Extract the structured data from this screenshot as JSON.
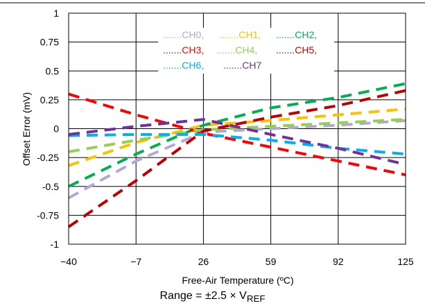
{
  "chart_data": {
    "type": "line",
    "xlabel": "Free-Air Temperature (ºC)",
    "ylabel": "Offset Error (mV)",
    "xlim": [
      -40,
      125
    ],
    "ylim": [
      -1,
      1
    ],
    "x_ticks": [
      -40,
      -7,
      26,
      59,
      92,
      125
    ],
    "x_tick_labels": [
      "−40",
      "−7",
      "26",
      "59",
      "92",
      "125"
    ],
    "y_ticks": [
      1,
      0.75,
      0.5,
      0.25,
      0,
      -0.25,
      -0.5,
      -0.75,
      -1
    ],
    "y_tick_labels": [
      "1",
      "0.75",
      "0.5",
      "0.25",
      "0",
      "-0.25",
      "-0.5",
      "-0.75",
      "-1"
    ],
    "grid": true,
    "legend_position": "top-center",
    "line_style": "dashed",
    "x": [
      -40,
      -7,
      26,
      59,
      92,
      125
    ],
    "series": [
      {
        "name": "CH0",
        "legend_label": ".......CH0,",
        "color": "#b4a7d6",
        "values": [
          -0.6,
          -0.28,
          -0.03,
          0.0,
          0.03,
          0.07
        ]
      },
      {
        "name": "CH1",
        "legend_label": ".......CH1,",
        "color": "#ffc000",
        "values": [
          -0.32,
          -0.12,
          0.03,
          0.07,
          0.12,
          0.17
        ]
      },
      {
        "name": "CH2",
        "legend_label": ".......CH2,",
        "color": "#00b050",
        "values": [
          -0.5,
          -0.22,
          0.03,
          0.18,
          0.27,
          0.39
        ]
      },
      {
        "name": "CH3",
        "legend_label": ".......CH3,",
        "color": "#ff0000",
        "values": [
          0.3,
          0.12,
          -0.04,
          -0.16,
          -0.28,
          -0.4
        ]
      },
      {
        "name": "CH4",
        "legend_label": ".......CH4,",
        "color": "#92d050",
        "values": [
          -0.2,
          -0.1,
          -0.01,
          0.02,
          0.05,
          0.08
        ]
      },
      {
        "name": "CH5",
        "legend_label": ".......CH5,",
        "color": "#c00000",
        "values": [
          -0.85,
          -0.45,
          -0.02,
          0.1,
          0.2,
          0.33
        ]
      },
      {
        "name": "CH6",
        "legend_label": ".......CH6,",
        "color": "#00b0f0",
        "values": [
          -0.06,
          -0.05,
          -0.05,
          -0.1,
          -0.17,
          -0.22
        ]
      },
      {
        "name": "CH7",
        "legend_label": ".......CH7",
        "color": "#7030a0",
        "values": [
          -0.05,
          0.02,
          0.08,
          -0.05,
          -0.17,
          -0.31
        ]
      }
    ]
  },
  "caption": {
    "prefix": "Range = ±2.5 × V",
    "subscript": "REF"
  }
}
